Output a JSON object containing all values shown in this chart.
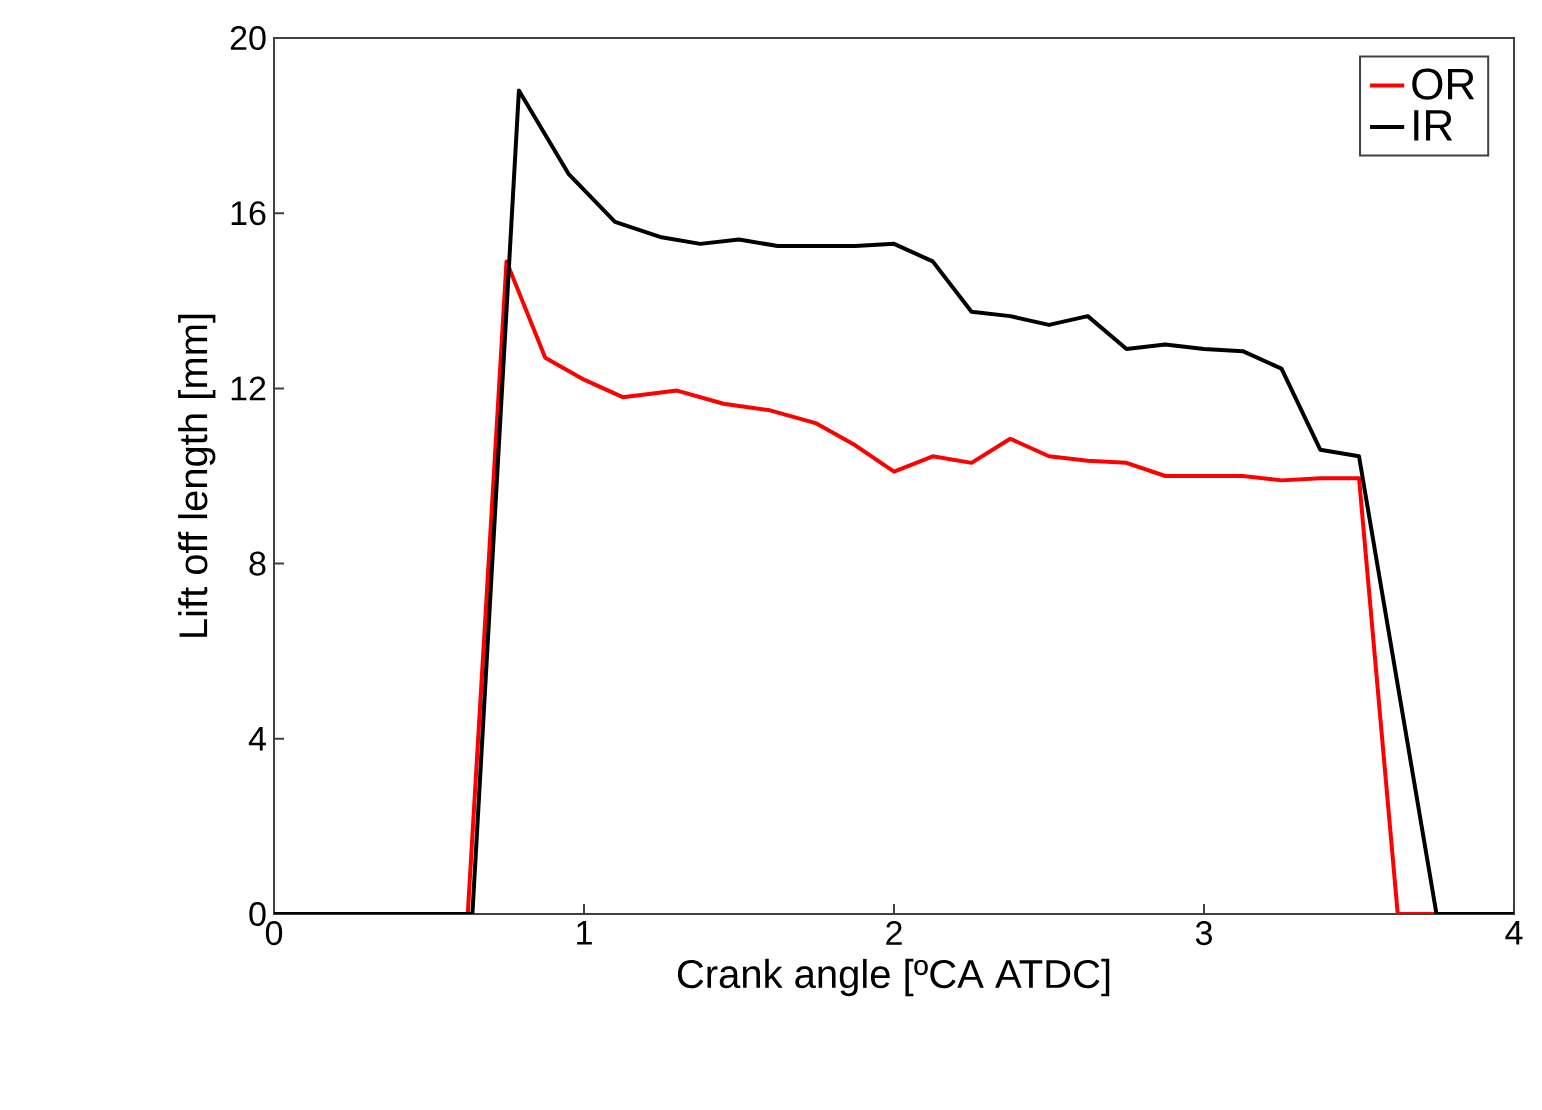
{
  "chart_data": {
    "type": "line",
    "xlabel": "Crank angle [ºCA ATDC]",
    "ylabel": "Lift off length [mm]",
    "xlim": [
      0,
      4
    ],
    "ylim": [
      0,
      20
    ],
    "xticks": [
      0,
      1,
      2,
      3,
      4
    ],
    "yticks": [
      0,
      4,
      8,
      12,
      16,
      20
    ],
    "grid": false,
    "legend": "top right",
    "marker": "none",
    "line_style": "solid",
    "series": [
      {
        "name": "OR",
        "color": "#ff0000",
        "x": [
          0,
          0.625,
          0.75,
          0.875,
          1.0,
          1.125,
          1.3,
          1.45,
          1.6,
          1.75,
          1.875,
          2.0,
          2.125,
          2.25,
          2.375,
          2.5,
          2.625,
          2.75,
          2.875,
          3.0,
          3.125,
          3.25,
          3.375,
          3.5,
          3.625,
          3.75
        ],
        "values": [
          0,
          0,
          14.9,
          12.7,
          12.2,
          11.8,
          11.95,
          11.65,
          11.5,
          11.2,
          10.7,
          10.1,
          10.45,
          10.3,
          10.85,
          10.45,
          10.35,
          10.3,
          10.0,
          10.0,
          10.0,
          9.9,
          9.95,
          9.95,
          0,
          0
        ]
      },
      {
        "name": "IR",
        "color": "#000000",
        "x": [
          0,
          0.64,
          0.79,
          0.95,
          1.1,
          1.25,
          1.375,
          1.5,
          1.625,
          1.75,
          1.875,
          2.0,
          2.125,
          2.25,
          2.375,
          2.5,
          2.625,
          2.75,
          2.875,
          3.0,
          3.125,
          3.25,
          3.375,
          3.5,
          3.75,
          4.0
        ],
        "values": [
          0,
          0,
          18.8,
          16.9,
          15.8,
          15.45,
          15.3,
          15.4,
          15.25,
          15.25,
          15.25,
          15.3,
          14.9,
          13.75,
          13.65,
          13.45,
          13.65,
          12.9,
          13.0,
          12.9,
          12.85,
          12.45,
          10.6,
          10.45,
          0,
          0
        ]
      }
    ]
  }
}
